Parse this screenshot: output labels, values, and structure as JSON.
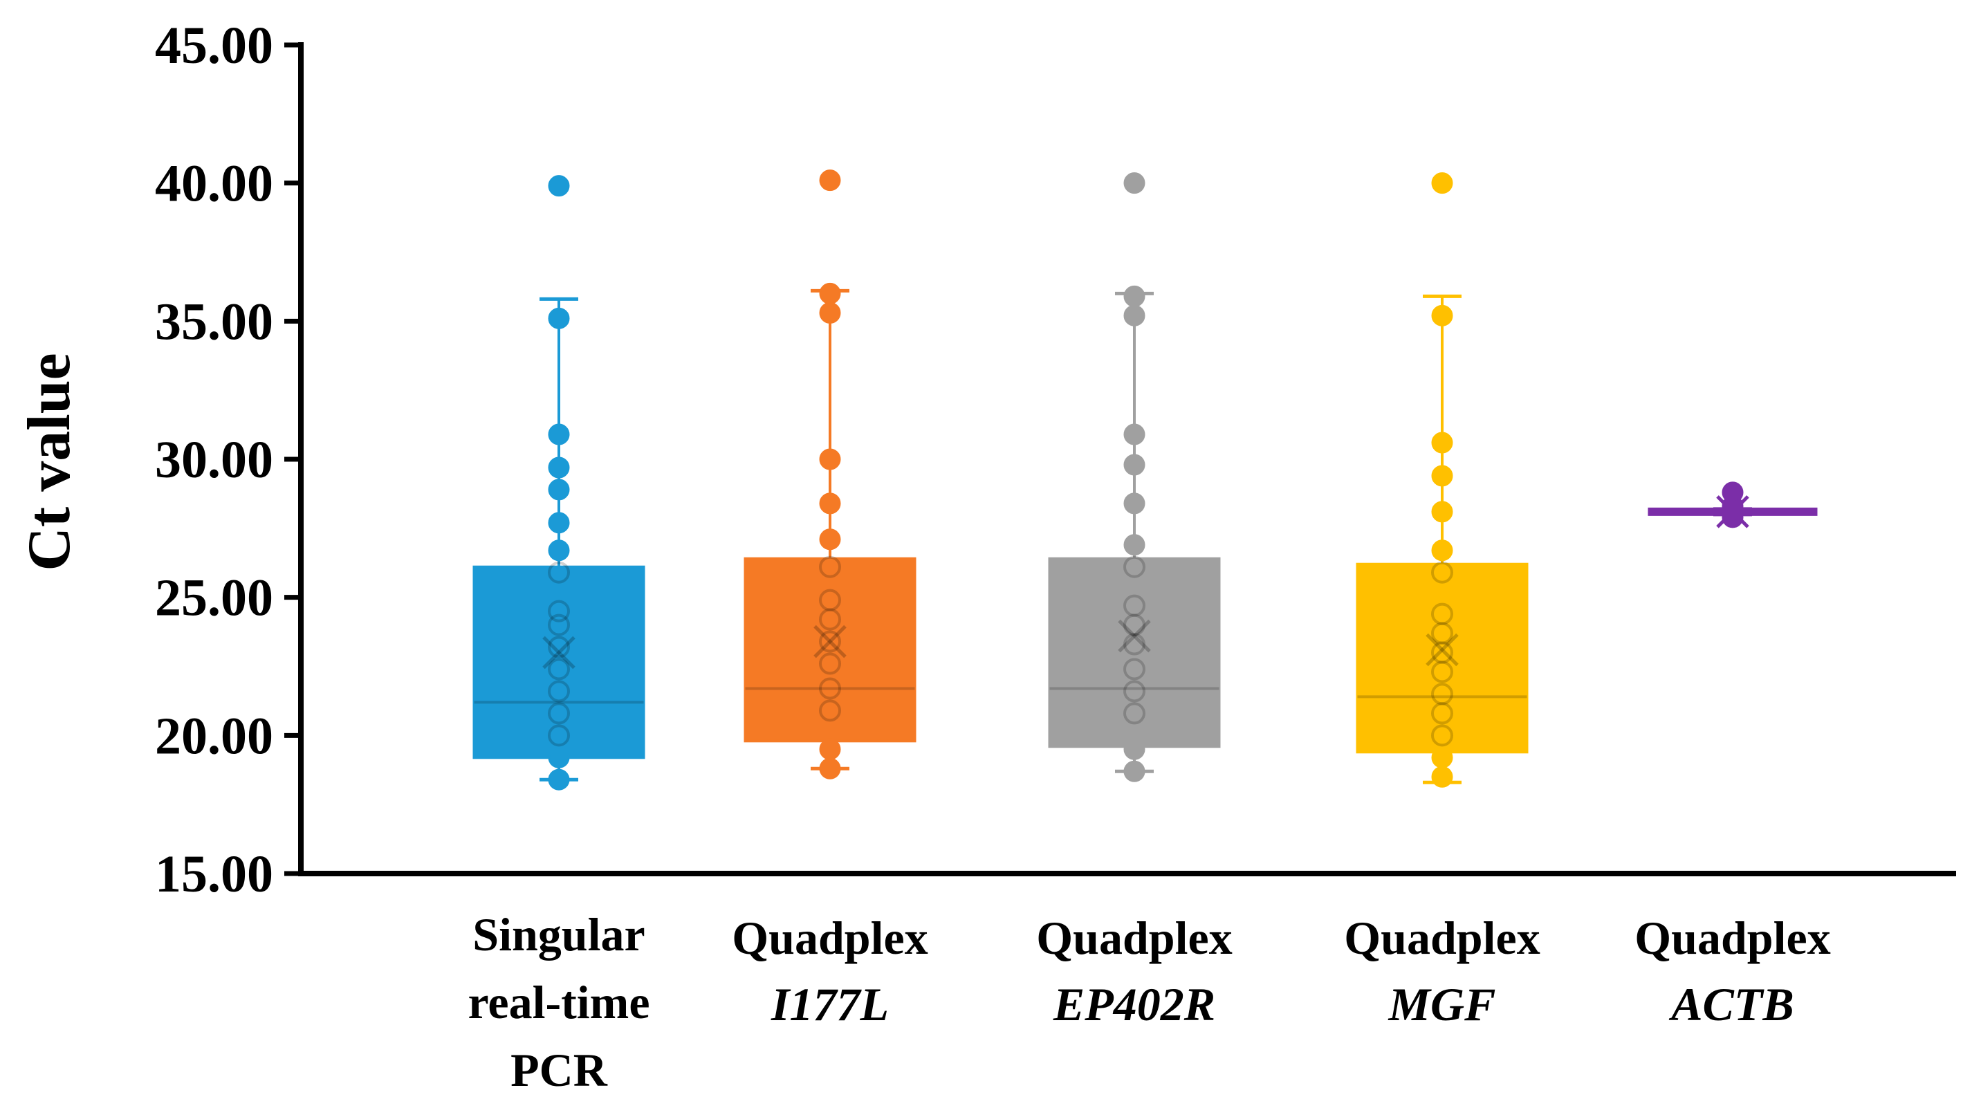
{
  "chart_data": {
    "type": "box",
    "title": "",
    "xlabel": "",
    "ylabel": "Ct value",
    "ylim": [
      15,
      45
    ],
    "yticks": [
      "15.00",
      "20.00",
      "25.00",
      "30.00",
      "35.00",
      "40.00",
      "45.00"
    ],
    "groups": [
      {
        "name": "Singular real-time PCR",
        "label_lines": [
          {
            "text": "Singular",
            "italic": false
          },
          {
            "text": "real-time",
            "italic": false
          },
          {
            "text": "PCR",
            "italic": false
          }
        ],
        "color": "#1b9ad6",
        "whisker_low": 18.4,
        "q1": 19.2,
        "median": 21.2,
        "q3": 26.1,
        "whisker_high": 35.8,
        "mean": 23.0,
        "points": [
          18.4,
          19.2,
          20.0,
          20.8,
          21.6,
          22.4,
          23.2,
          24.0,
          24.5,
          25.9,
          26.7,
          27.7,
          28.9,
          29.7,
          30.9,
          35.1,
          39.9
        ]
      },
      {
        "name": "Quadplex I177L",
        "label_lines": [
          {
            "text": "Quadplex",
            "italic": false
          },
          {
            "text": "I177L",
            "italic": true
          }
        ],
        "color": "#f57a25",
        "whisker_low": 18.8,
        "q1": 19.8,
        "median": 21.7,
        "q3": 26.4,
        "whisker_high": 36.1,
        "mean": 23.4,
        "points": [
          18.8,
          19.5,
          20.9,
          21.7,
          22.6,
          23.4,
          24.2,
          24.9,
          26.1,
          27.1,
          28.4,
          30.0,
          35.3,
          36.0,
          40.1
        ]
      },
      {
        "name": "Quadplex EP402R",
        "label_lines": [
          {
            "text": "Quadplex",
            "italic": false
          },
          {
            "text": "EP402R",
            "italic": true
          }
        ],
        "color": "#a0a0a0",
        "whisker_low": 18.7,
        "q1": 19.6,
        "median": 21.7,
        "q3": 26.4,
        "whisker_high": 36.0,
        "mean": 23.6,
        "points": [
          18.7,
          19.5,
          20.8,
          21.6,
          22.4,
          23.3,
          24.0,
          24.7,
          26.1,
          26.9,
          28.4,
          29.8,
          30.9,
          35.2,
          35.9,
          40.0
        ]
      },
      {
        "name": "Quadplex MGF",
        "label_lines": [
          {
            "text": "Quadplex",
            "italic": false
          },
          {
            "text": "MGF",
            "italic": true
          }
        ],
        "color": "#ffc000",
        "whisker_low": 18.3,
        "q1": 19.4,
        "median": 21.4,
        "q3": 26.2,
        "whisker_high": 35.9,
        "mean": 23.1,
        "points": [
          18.5,
          19.2,
          20.0,
          20.8,
          21.5,
          22.3,
          23.0,
          23.7,
          24.4,
          25.9,
          26.7,
          28.1,
          29.4,
          30.6,
          35.2,
          40.0
        ]
      },
      {
        "name": "Quadplex ACTB",
        "label_lines": [
          {
            "text": "Quadplex",
            "italic": false
          },
          {
            "text": "ACTB",
            "italic": true
          }
        ],
        "color": "#7b2ea8",
        "whisker_low": 28.0,
        "q1": 28.0,
        "median": 28.1,
        "q3": 28.2,
        "whisker_high": 28.2,
        "mean": 28.1,
        "points": [
          27.9,
          28.1,
          28.3,
          28.8
        ]
      }
    ]
  }
}
